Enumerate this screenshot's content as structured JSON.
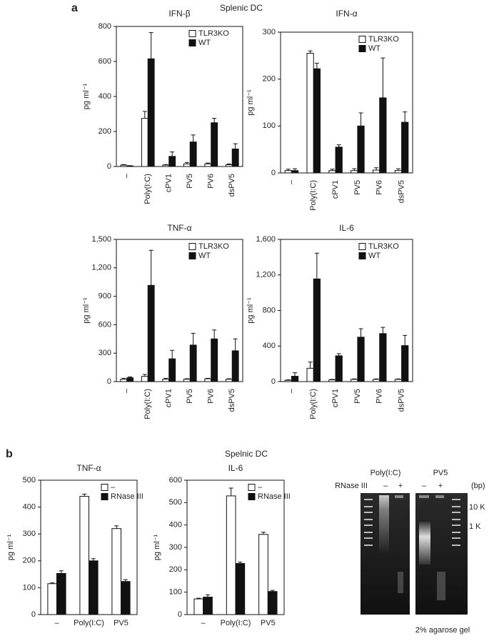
{
  "panel_a": {
    "label": "a",
    "title": "Splenic DC"
  },
  "panel_b": {
    "label": "b",
    "title": "Spelnic DC"
  },
  "chart_data": [
    {
      "type": "bar",
      "title": "IFN-β",
      "y_label": "pg ml⁻¹",
      "categories": [
        "–",
        "Poly(I:C)",
        "cPV1",
        "PV5",
        "PV6",
        "dsPV5"
      ],
      "series": [
        {
          "name": "TLR3KO",
          "color": "#ffffff",
          "values": [
            8,
            275,
            8,
            15,
            15,
            10
          ],
          "errors": [
            3,
            40,
            3,
            8,
            5,
            5
          ]
        },
        {
          "name": "WT",
          "color": "#111111",
          "values": [
            3,
            615,
            58,
            140,
            250,
            100
          ],
          "errors": [
            2,
            150,
            25,
            40,
            25,
            30
          ]
        }
      ],
      "ylim": [
        0,
        800
      ],
      "yticks": [
        0,
        200,
        400,
        600,
        800
      ],
      "legend": "upper right"
    },
    {
      "type": "bar",
      "title": "IFN-α",
      "y_label": "pg ml⁻¹",
      "categories": [
        "–",
        "Poly(I:C)",
        "cPV1",
        "PV5",
        "PV6",
        "dsPV5"
      ],
      "series": [
        {
          "name": "TLR3KO",
          "color": "#ffffff",
          "values": [
            5,
            255,
            5,
            5,
            6,
            5
          ],
          "errors": [
            3,
            5,
            3,
            4,
            5,
            4
          ]
        },
        {
          "name": "WT",
          "color": "#111111",
          "values": [
            5,
            222,
            55,
            100,
            160,
            108
          ],
          "errors": [
            4,
            12,
            5,
            28,
            85,
            22
          ]
        }
      ],
      "ylim": [
        0,
        300
      ],
      "yticks": [
        0,
        100,
        200,
        300
      ],
      "legend": "upper right"
    },
    {
      "type": "bar",
      "title": "TNF-α",
      "y_label": "pg ml⁻¹",
      "categories": [
        "–",
        "Poly(I:C)",
        "cPV1",
        "PV5",
        "PV6",
        "dsPV5"
      ],
      "series": [
        {
          "name": "TLR3KO",
          "color": "#ffffff",
          "values": [
            25,
            55,
            25,
            25,
            30,
            25
          ],
          "errors": [
            10,
            20,
            10,
            5,
            5,
            5
          ]
        },
        {
          "name": "WT",
          "color": "#111111",
          "values": [
            40,
            1015,
            240,
            385,
            450,
            325
          ],
          "errors": [
            10,
            370,
            90,
            125,
            95,
            125
          ]
        }
      ],
      "ylim": [
        0,
        1500
      ],
      "yticks": [
        0,
        300,
        600,
        900,
        {
          "value": 1200,
          "label": "1,200"
        },
        {
          "value": 1500,
          "label": "1,500"
        }
      ],
      "legend": "upper right"
    },
    {
      "type": "bar",
      "title": "IL-6",
      "y_label": "pg ml⁻¹",
      "categories": [
        "–",
        "Poly(I:C)",
        "cPV1",
        "PV5",
        "PV6",
        "dsPV5"
      ],
      "series": [
        {
          "name": "TLR3KO",
          "color": "#ffffff",
          "values": [
            15,
            150,
            20,
            25,
            25,
            25
          ],
          "errors": [
            5,
            70,
            5,
            5,
            5,
            5
          ]
        },
        {
          "name": "WT",
          "color": "#111111",
          "values": [
            60,
            1155,
            290,
            500,
            540,
            405
          ],
          "errors": [
            40,
            290,
            25,
            95,
            70,
            115
          ]
        }
      ],
      "ylim": [
        0,
        1600
      ],
      "yticks": [
        0,
        400,
        800,
        {
          "value": 1200,
          "label": "1,200"
        },
        {
          "value": 1600,
          "label": "1,600"
        }
      ],
      "legend": "upper right"
    },
    {
      "type": "bar",
      "title": "TNF-α",
      "y_label": "pg ml⁻¹",
      "categories": [
        "–",
        "Poly(I:C)",
        "PV5"
      ],
      "series": [
        {
          "name": "–",
          "color": "#ffffff",
          "values": [
            115,
            440,
            320
          ],
          "errors": [
            3,
            8,
            10
          ]
        },
        {
          "name": "RNase III",
          "color": "#111111",
          "values": [
            153,
            200,
            123
          ],
          "errors": [
            10,
            8,
            7
          ]
        }
      ],
      "ylim": [
        0,
        500
      ],
      "yticks": [
        0,
        100,
        200,
        300,
        400,
        500
      ],
      "legend": "upper right"
    },
    {
      "type": "bar",
      "title": "IL-6",
      "y_label": "pg ml⁻¹",
      "categories": [
        "–",
        "Poly(I:C)",
        "PV5"
      ],
      "series": [
        {
          "name": "–",
          "color": "#ffffff",
          "values": [
            70,
            530,
            358
          ],
          "errors": [
            3,
            35,
            10
          ]
        },
        {
          "name": "RNase III",
          "color": "#111111",
          "values": [
            78,
            228,
            103
          ],
          "errors": [
            10,
            6,
            5
          ]
        }
      ],
      "ylim": [
        0,
        600
      ],
      "yticks": [
        0,
        100,
        200,
        300,
        400,
        500,
        600
      ],
      "legend": "upper right"
    }
  ],
  "gel": {
    "lanes": [
      "Poly(I:C)",
      "PV5"
    ],
    "row_label": "RNase III",
    "signs": [
      "–",
      "+",
      "–",
      "+"
    ],
    "unit": "(bp)",
    "markers": [
      "10 K",
      "1 K"
    ],
    "caption": "2% agarose gel"
  }
}
